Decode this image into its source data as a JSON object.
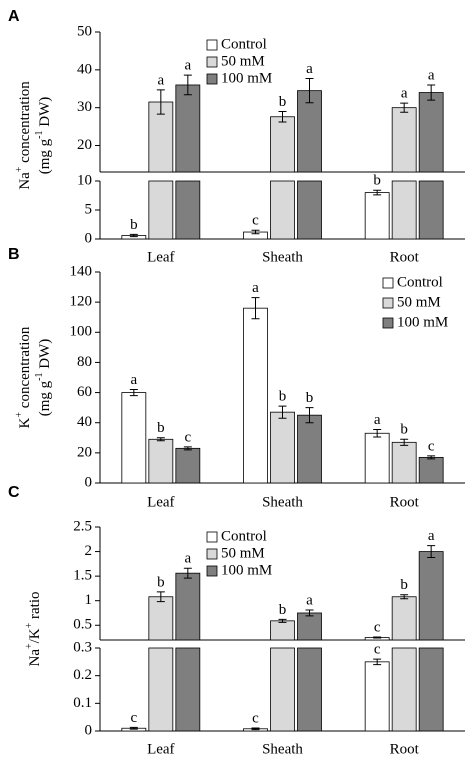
{
  "chart_data": [
    {
      "type": "bar",
      "panel_label": "A",
      "ylabel": [
        [
          "Na",
          "+",
          " concentration"
        ],
        [
          "(mg g",
          "-1",
          " DW)"
        ]
      ],
      "categories": [
        "Leaf",
        "Sheath",
        "Root"
      ],
      "legend": "upper center",
      "segments": [
        {
          "ylim": [
            0,
            10
          ],
          "yticks": [
            0,
            5,
            10
          ]
        },
        {
          "ylim": [
            13,
            50
          ],
          "yticks": [
            20,
            30,
            40,
            50
          ]
        }
      ],
      "series": [
        {
          "name": "Control",
          "color": "#ffffff",
          "values": [
            0.6,
            1.2,
            8.0
          ],
          "errors": [
            0.2,
            0.3,
            0.4
          ],
          "letters": [
            "b",
            "c",
            "b"
          ]
        },
        {
          "name": "50 mM",
          "color": "#d9d9d9",
          "values": [
            31.5,
            27.6,
            30.0
          ],
          "errors": [
            3.2,
            1.4,
            1.2
          ],
          "letters": [
            "a",
            "b",
            "a"
          ]
        },
        {
          "name": "100 mM",
          "color": "#7f7f7f",
          "values": [
            36.0,
            34.5,
            34.0
          ],
          "errors": [
            2.6,
            3.2,
            2.0
          ],
          "letters": [
            "a",
            "a",
            "a"
          ]
        }
      ]
    },
    {
      "type": "bar",
      "panel_label": "B",
      "ylabel": [
        [
          "K",
          "+",
          " concentration"
        ],
        [
          "(mg g",
          "-1",
          " DW)"
        ]
      ],
      "categories": [
        "Leaf",
        "Sheath",
        "Root"
      ],
      "legend": "upper right",
      "ylim": [
        0,
        140
      ],
      "yticks": [
        0,
        20,
        40,
        60,
        80,
        100,
        120,
        140
      ],
      "series": [
        {
          "name": "Control",
          "color": "#ffffff",
          "values": [
            60,
            116,
            33
          ],
          "errors": [
            2,
            7,
            2.5
          ],
          "letters": [
            "a",
            "a",
            "a"
          ]
        },
        {
          "name": "50 mM",
          "color": "#d9d9d9",
          "values": [
            29,
            47,
            27
          ],
          "errors": [
            1,
            4,
            2
          ],
          "letters": [
            "b",
            "b",
            "b"
          ]
        },
        {
          "name": "100 mM",
          "color": "#7f7f7f",
          "values": [
            23,
            45,
            17
          ],
          "errors": [
            1,
            5,
            1
          ],
          "letters": [
            "c",
            "b",
            "c"
          ]
        }
      ]
    },
    {
      "type": "bar",
      "panel_label": "C",
      "ylabel": [
        [
          "Na",
          "+",
          "/K",
          "+",
          " ratio"
        ]
      ],
      "categories": [
        "Leaf",
        "Sheath",
        "Root"
      ],
      "legend": "upper center",
      "segments": [
        {
          "ylim": [
            0,
            0.3
          ],
          "yticks": [
            0,
            0.1,
            0.2,
            0.3
          ]
        },
        {
          "ylim": [
            0.2,
            2.5
          ],
          "yticks": [
            0.5,
            1,
            1.5,
            2,
            2.5
          ]
        }
      ],
      "series": [
        {
          "name": "Control",
          "color": "#ffffff",
          "values": [
            0.01,
            0.008,
            0.25
          ],
          "errors": [
            0.003,
            0.003,
            0.01
          ],
          "letters": [
            "c",
            "c",
            "c"
          ]
        },
        {
          "name": "50 mM",
          "color": "#d9d9d9",
          "values": [
            1.08,
            0.59,
            1.08
          ],
          "errors": [
            0.1,
            0.03,
            0.04
          ],
          "letters": [
            "b",
            "b",
            "b"
          ]
        },
        {
          "name": "100 mM",
          "color": "#7f7f7f",
          "values": [
            1.56,
            0.75,
            2.0
          ],
          "errors": [
            0.1,
            0.06,
            0.12
          ],
          "letters": [
            "a",
            "a",
            "a"
          ]
        }
      ]
    }
  ]
}
